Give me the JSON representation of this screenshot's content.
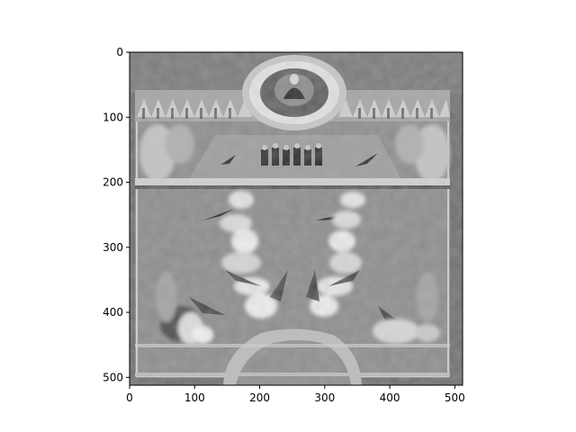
{
  "figure": {
    "background": "#ffffff",
    "colormap": "gray"
  },
  "chart_data": {
    "type": "heatmap",
    "content": "grayscale image display (imshow) of an illuminated painting: a circular medallion at the top center, rows of figures along a horizontal frieze, and tall white flowers in vases in the lower half",
    "image_shape": [
      512,
      512
    ],
    "origin": "upper",
    "xlim": [
      0,
      512
    ],
    "ylim": [
      512,
      0
    ],
    "xticks": [
      0,
      100,
      200,
      300,
      400,
      500
    ],
    "yticks": [
      0,
      100,
      200,
      300,
      400,
      500
    ],
    "xtick_labels": [
      "0",
      "100",
      "200",
      "300",
      "400",
      "500"
    ],
    "ytick_labels": [
      "0",
      "100",
      "200",
      "300",
      "400",
      "500"
    ],
    "title": "",
    "xlabel": "",
    "ylabel": "",
    "grid": false,
    "legend": false
  }
}
